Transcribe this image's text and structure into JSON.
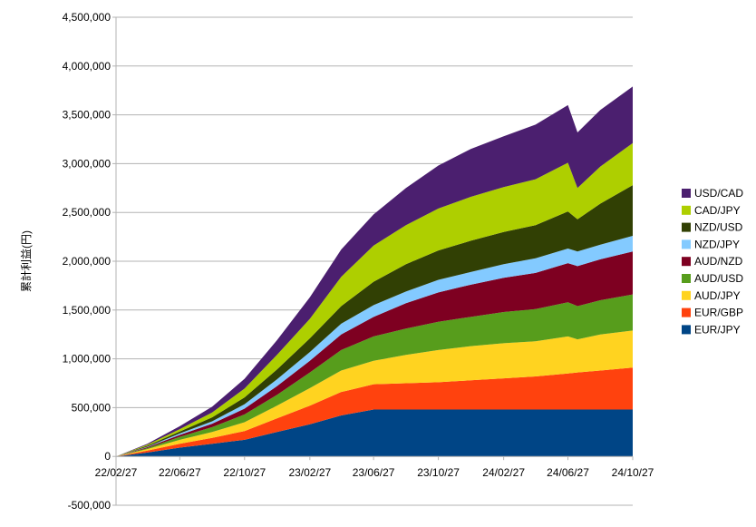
{
  "chart_data": {
    "type": "area",
    "stacked": true,
    "title": "",
    "xlabel": "",
    "ylabel": "累計利益(円)",
    "ylim": [
      -500000,
      4500000
    ],
    "yticks": [
      -500000,
      0,
      500000,
      1000000,
      1500000,
      2000000,
      2500000,
      3000000,
      3500000,
      4000000,
      4500000
    ],
    "ytick_labels": [
      "-500,000",
      "0",
      "500,000",
      "1,000,000",
      "1,500,000",
      "2,000,000",
      "2,500,000",
      "3,000,000",
      "3,500,000",
      "4,000,000",
      "4,500,000"
    ],
    "xtick_labels": [
      "22/02/27",
      "22/06/27",
      "22/10/27",
      "23/02/27",
      "23/06/27",
      "23/10/27",
      "24/02/27",
      "24/06/27",
      "24/10/27"
    ],
    "x": [
      "22/02/27",
      "22/04/27",
      "22/06/27",
      "22/08/27",
      "22/10/27",
      "22/12/27",
      "23/02/27",
      "23/04/27",
      "23/06/27",
      "23/08/27",
      "23/10/27",
      "23/12/27",
      "24/02/27",
      "24/04/27",
      "24/06/27",
      "24/07/15",
      "24/08/27",
      "24/10/27"
    ],
    "grid": "horizontal",
    "legend_position": "right",
    "series": [
      {
        "name": "EUR/JPY",
        "color": "#004586",
        "values": [
          0,
          40000,
          90000,
          130000,
          170000,
          250000,
          330000,
          420000,
          480000,
          480000,
          480000,
          480000,
          480000,
          480000,
          480000,
          480000,
          480000,
          480000
        ]
      },
      {
        "name": "EUR/GBP",
        "color": "#ff420e",
        "values": [
          0,
          20000,
          40000,
          60000,
          90000,
          140000,
          190000,
          240000,
          260000,
          270000,
          280000,
          300000,
          320000,
          340000,
          370000,
          380000,
          400000,
          430000
        ]
      },
      {
        "name": "AUD/JPY",
        "color": "#ffd320",
        "values": [
          0,
          15000,
          40000,
          60000,
          90000,
          130000,
          180000,
          220000,
          240000,
          290000,
          330000,
          350000,
          360000,
          360000,
          380000,
          340000,
          370000,
          380000
        ]
      },
      {
        "name": "AUD/USD",
        "color": "#579d1c",
        "values": [
          0,
          10000,
          30000,
          50000,
          80000,
          110000,
          160000,
          210000,
          250000,
          270000,
          290000,
          300000,
          320000,
          330000,
          350000,
          340000,
          350000,
          370000
        ]
      },
      {
        "name": "AUD/NZD",
        "color": "#7e0021",
        "values": [
          0,
          10000,
          20000,
          35000,
          60000,
          90000,
          120000,
          160000,
          200000,
          260000,
          300000,
          330000,
          350000,
          370000,
          400000,
          410000,
          420000,
          440000
        ]
      },
      {
        "name": "NZD/JPY",
        "color": "#83caff",
        "values": [
          0,
          5000,
          15000,
          25000,
          45000,
          70000,
          90000,
          110000,
          120000,
          120000,
          130000,
          130000,
          140000,
          150000,
          150000,
          150000,
          150000,
          160000
        ]
      },
      {
        "name": "NZD/USD",
        "color": "#314004",
        "values": [
          0,
          10000,
          20000,
          40000,
          70000,
          100000,
          140000,
          180000,
          240000,
          280000,
          300000,
          320000,
          330000,
          340000,
          380000,
          330000,
          420000,
          520000
        ]
      },
      {
        "name": "CAD/JPY",
        "color": "#aecf00",
        "values": [
          0,
          10000,
          25000,
          50000,
          90000,
          150000,
          200000,
          300000,
          370000,
          400000,
          430000,
          450000,
          460000,
          470000,
          500000,
          320000,
          380000,
          430000
        ]
      },
      {
        "name": "USD/CAD",
        "color": "#4b1f6f",
        "values": [
          0,
          10000,
          30000,
          60000,
          100000,
          150000,
          220000,
          280000,
          320000,
          380000,
          440000,
          490000,
          520000,
          560000,
          590000,
          570000,
          580000,
          580000
        ]
      }
    ]
  }
}
